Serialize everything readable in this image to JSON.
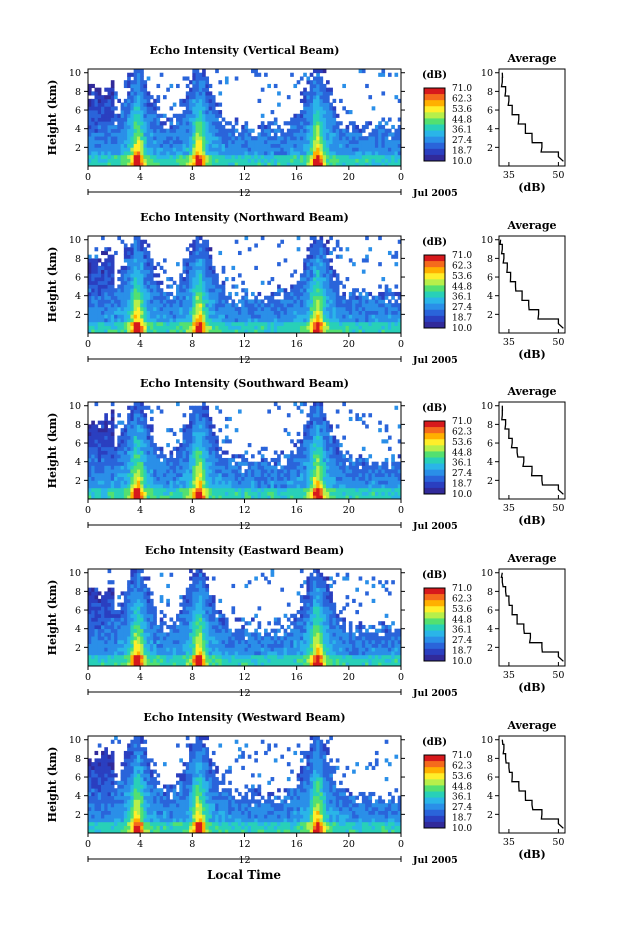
{
  "figure": {
    "xlabel": "Local Time",
    "date_label": "Jul 2005",
    "colorbar_unit": "(dB)",
    "colorbar_ticks": [
      "71.0",
      "62.3",
      "53.6",
      "44.8",
      "36.1",
      "27.4",
      "18.7",
      "10.0"
    ],
    "colorbar_colors": [
      "#d7191c",
      "#f56a1c",
      "#ffb000",
      "#ffee2a",
      "#b7ef4a",
      "#53e070",
      "#28d0b8",
      "#2ab5e8",
      "#2a8fe8",
      "#2a64da",
      "#2a3fc0",
      "#312a9a"
    ],
    "average_title": "Average",
    "average_xlabel": "(dB)",
    "x_ticks": [
      "0",
      "4",
      "8",
      "12",
      "16",
      "20",
      "0"
    ],
    "y_ticks": [
      "2",
      "4",
      "6",
      "8",
      "10"
    ],
    "ylabel": "Height (km)",
    "midday_label": "12"
  },
  "chart_data": [
    {
      "type": "heatmap",
      "title": "Echo Intensity (Vertical Beam)",
      "xlabel": "Local Time",
      "ylabel": "Height (km)",
      "xlim": [
        0,
        24
      ],
      "ylim": [
        0,
        10
      ],
      "color_range_db": [
        10.0,
        71.0
      ],
      "convective_events_hour": [
        3.8,
        8.5,
        17.6
      ],
      "average_profile": {
        "x_ticks": [
          "35",
          "50"
        ],
        "xlim": [
          32,
          52
        ],
        "height_km": [
          1,
          2,
          3,
          4,
          5,
          6,
          7,
          8,
          9,
          10
        ],
        "db": [
          50,
          45,
          42,
          40,
          38,
          36,
          35,
          34,
          33,
          33
        ]
      }
    },
    {
      "type": "heatmap",
      "title": "Echo Intensity (Northward Beam)",
      "xlabel": "Local Time",
      "ylabel": "Height (km)",
      "xlim": [
        0,
        24
      ],
      "ylim": [
        0,
        10
      ],
      "color_range_db": [
        10.0,
        71.0
      ],
      "convective_events_hour": [
        3.8,
        8.5,
        17.6
      ],
      "average_profile": {
        "x_ticks": [
          "35",
          "50"
        ],
        "xlim": [
          32,
          52
        ],
        "height_km": [
          1,
          2,
          3,
          4,
          5,
          6,
          7,
          8,
          9,
          10
        ],
        "db": [
          50,
          44,
          41,
          39,
          37,
          35.5,
          34.5,
          33.5,
          33,
          32.5
        ]
      }
    },
    {
      "type": "heatmap",
      "title": "Echo Intensity (Southward Beam)",
      "xlabel": "Local Time",
      "ylabel": "Height (km)",
      "xlim": [
        0,
        24
      ],
      "ylim": [
        0,
        10
      ],
      "color_range_db": [
        10.0,
        71.0
      ],
      "convective_events_hour": [
        3.8,
        8.5,
        17.6
      ],
      "average_profile": {
        "x_ticks": [
          "35",
          "50"
        ],
        "xlim": [
          32,
          52
        ],
        "height_km": [
          1,
          2,
          3,
          4,
          5,
          6,
          7,
          8,
          9,
          10
        ],
        "db": [
          50,
          45,
          42,
          39.5,
          37.5,
          36,
          35,
          34,
          33,
          33
        ]
      }
    },
    {
      "type": "heatmap",
      "title": "Echo Intensity (Eastward Beam)",
      "xlabel": "Local Time",
      "ylabel": "Height (km)",
      "xlim": [
        0,
        24
      ],
      "ylim": [
        0,
        10
      ],
      "color_range_db": [
        10.0,
        71.0
      ],
      "convective_events_hour": [
        3.8,
        8.5,
        17.6
      ],
      "average_profile": {
        "x_ticks": [
          "35",
          "50"
        ],
        "xlim": [
          32,
          52
        ],
        "height_km": [
          1,
          2,
          3,
          4,
          5,
          6,
          7,
          8,
          9,
          10
        ],
        "db": [
          50,
          45,
          41.5,
          39.5,
          37.5,
          36,
          35,
          34,
          33,
          33
        ]
      }
    },
    {
      "type": "heatmap",
      "title": "Echo Intensity (Westward Beam)",
      "xlabel": "Local Time",
      "ylabel": "Height (km)",
      "xlim": [
        0,
        24
      ],
      "ylim": [
        0,
        10
      ],
      "color_range_db": [
        10.0,
        71.0
      ],
      "convective_events_hour": [
        3.8,
        8.5,
        17.6
      ],
      "average_profile": {
        "x_ticks": [
          "35",
          "50"
        ],
        "xlim": [
          32,
          52
        ],
        "height_km": [
          1,
          2,
          3,
          4,
          5,
          6,
          7,
          8,
          9,
          10
        ],
        "db": [
          50,
          45,
          42,
          40,
          38,
          36,
          35,
          34,
          33.5,
          33
        ]
      }
    }
  ]
}
